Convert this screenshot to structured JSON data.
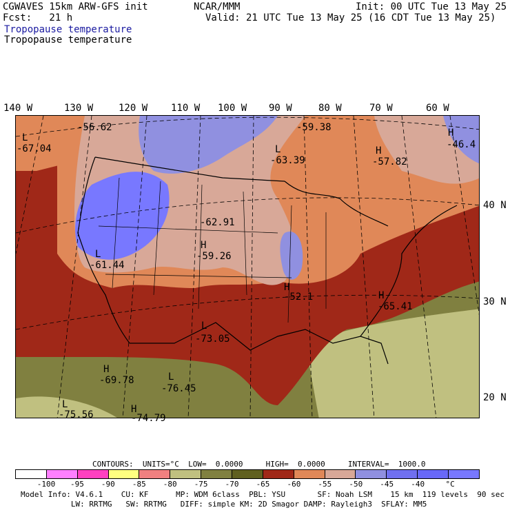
{
  "header": {
    "model": "CGWAVES 15km ARW-GFS init",
    "org": "NCAR/MMM",
    "init": "Init: 00 UTC Tue 13 May 25",
    "fcst": "Fcst:   21 h",
    "valid": "Valid: 21 UTC Tue 13 May 25 (16 CDT Tue 13 May 25)",
    "field1": "Tropopause temperature",
    "field2": "Tropopause temperature"
  },
  "axes": {
    "longitudes": [
      "140 W",
      "130 W",
      "120 W",
      "110 W",
      "100 W",
      "90 W",
      "80 W",
      "70 W",
      "60 W"
    ],
    "latitudes": [
      "40 N",
      "30 N",
      "20 N"
    ]
  },
  "map_labels": [
    {
      "text": "L",
      "kind": "symbol"
    },
    {
      "text": "-67.04",
      "kind": "value"
    },
    {
      "text": "-56.62",
      "kind": "value"
    },
    {
      "text": "-59.38",
      "kind": "value"
    },
    {
      "text": "H",
      "kind": "symbol"
    },
    {
      "text": "-46.4",
      "kind": "value"
    },
    {
      "text": "L",
      "kind": "symbol"
    },
    {
      "text": "-63.39",
      "kind": "value"
    },
    {
      "text": "H",
      "kind": "symbol"
    },
    {
      "text": "-57.82",
      "kind": "value"
    },
    {
      "text": "-62.91",
      "kind": "value"
    },
    {
      "text": "H",
      "kind": "symbol"
    },
    {
      "text": "-59.26",
      "kind": "value"
    },
    {
      "text": "L",
      "kind": "symbol"
    },
    {
      "text": "-61.44",
      "kind": "value"
    },
    {
      "text": "H",
      "kind": "symbol"
    },
    {
      "text": "-52.1",
      "kind": "value"
    },
    {
      "text": "H",
      "kind": "symbol"
    },
    {
      "text": "-65.41",
      "kind": "value"
    },
    {
      "text": "L",
      "kind": "symbol"
    },
    {
      "text": "-73.05",
      "kind": "value"
    },
    {
      "text": "H",
      "kind": "symbol"
    },
    {
      "text": "-69.78",
      "kind": "value"
    },
    {
      "text": "L",
      "kind": "symbol"
    },
    {
      "text": "-76.45",
      "kind": "value"
    },
    {
      "text": "L",
      "kind": "symbol"
    },
    {
      "text": "-75.56",
      "kind": "value"
    },
    {
      "text": "H",
      "kind": "symbol"
    },
    {
      "text": "-74.79",
      "kind": "value"
    }
  ],
  "contour_info": "CONTOURS:  UNITS=°C  LOW=  0.0000     HIGH=  0.0000     INTERVAL=  1000.0",
  "colorbar": {
    "colors": [
      "#ffffff",
      "#ff80ff",
      "#ff40c0",
      "#ffff80",
      "#f08080",
      "#c0c080",
      "#808040",
      "#606020",
      "#a02818",
      "#e08858",
      "#d8a898",
      "#9090e0",
      "#7070f0",
      "#6868f8",
      "#7878ff"
    ],
    "labels": [
      "-100",
      "-95",
      "-90",
      "-85",
      "-80",
      "-75",
      "-70",
      "-65",
      "-60",
      "-55",
      "-50",
      "-45",
      "-40",
      "°C"
    ]
  },
  "footer": {
    "line1": "Model Info: V4.6.1    CU: KF      MP: WDM 6class  PBL: YSU       SF: Noah LSM    15 km  119 levels  90 sec",
    "line2": "           LW: RRTMG   SW: RRTMG   DIFF: simple KM: 2D Smagor DAMP: Rayleigh3  SFLAY: MM5"
  }
}
